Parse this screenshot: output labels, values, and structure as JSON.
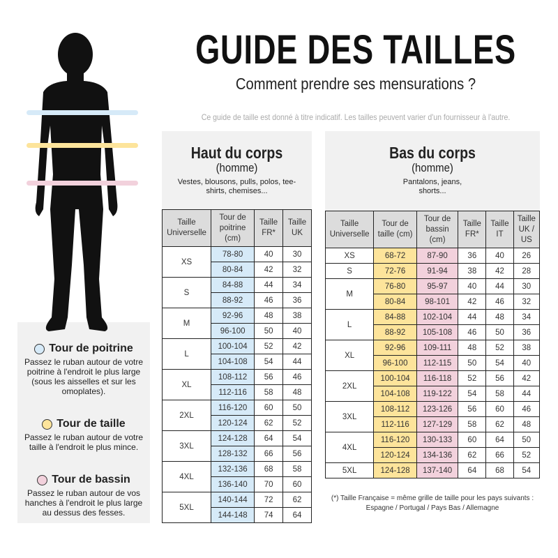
{
  "header": {
    "title": "GUIDE DES TAILLES",
    "subtitle": "Comment prendre ses mensurations ?",
    "note": "Ce guide de taille est donné à titre indicatif. Les tailles peuvent varier d'un fournisseur à l'autre."
  },
  "colors": {
    "chest": "#d6eaf8",
    "waist": "#fde49b",
    "hips": "#f2d1dc",
    "silhouette": "#111111"
  },
  "legend": [
    {
      "title": "Tour de poitrine",
      "text": "Passez le ruban autour de votre poitrine à l'endroit le plus large (sous les aisselles et sur les omoplates).",
      "color": "#d6eaf8"
    },
    {
      "title": "Tour de taille",
      "text": "Passez le ruban autour de votre taille à l'endroit le plus mince.",
      "color": "#fde49b"
    },
    {
      "title": "Tour de bassin",
      "text": "Passez le ruban autour de vos hanches à l'endroit le plus large au dessus des fesses.",
      "color": "#f2d1dc"
    }
  ],
  "top": {
    "title": "Haut du corps",
    "sub": "(homme)",
    "desc": "Vestes, blousons, pulls, polos, tee-shirts, chemises...",
    "columns": [
      "Taille Universelle",
      "Tour de poitrine (cm)",
      "Taille FR*",
      "Taille UK"
    ],
    "groups": [
      {
        "size": "XS",
        "rows": [
          [
            "78-80",
            "40",
            "30"
          ],
          [
            "80-84",
            "42",
            "32"
          ]
        ]
      },
      {
        "size": "S",
        "rows": [
          [
            "84-88",
            "44",
            "34"
          ],
          [
            "88-92",
            "46",
            "36"
          ]
        ]
      },
      {
        "size": "M",
        "rows": [
          [
            "92-96",
            "48",
            "38"
          ],
          [
            "96-100",
            "50",
            "40"
          ]
        ]
      },
      {
        "size": "L",
        "rows": [
          [
            "100-104",
            "52",
            "42"
          ],
          [
            "104-108",
            "54",
            "44"
          ]
        ]
      },
      {
        "size": "XL",
        "rows": [
          [
            "108-112",
            "56",
            "46"
          ],
          [
            "112-116",
            "58",
            "48"
          ]
        ]
      },
      {
        "size": "2XL",
        "rows": [
          [
            "116-120",
            "60",
            "50"
          ],
          [
            "120-124",
            "62",
            "52"
          ]
        ]
      },
      {
        "size": "3XL",
        "rows": [
          [
            "124-128",
            "64",
            "54"
          ],
          [
            "128-132",
            "66",
            "56"
          ]
        ]
      },
      {
        "size": "4XL",
        "rows": [
          [
            "132-136",
            "68",
            "58"
          ],
          [
            "136-140",
            "70",
            "60"
          ]
        ]
      },
      {
        "size": "5XL",
        "rows": [
          [
            "140-144",
            "72",
            "62"
          ],
          [
            "144-148",
            "74",
            "64"
          ]
        ]
      }
    ]
  },
  "bottom": {
    "title": "Bas du corps",
    "sub": "(homme)",
    "desc": "Pantalons, jeans, shorts...",
    "columns": [
      "Taille Universelle",
      "Tour de taille (cm)",
      "Tour de bassin (cm)",
      "Taille FR*",
      "Taille IT",
      "Taille UK / US"
    ],
    "groups": [
      {
        "size": "XS",
        "rows": [
          [
            "68-72",
            "87-90",
            "36",
            "40",
            "26"
          ]
        ]
      },
      {
        "size": "S",
        "rows": [
          [
            "72-76",
            "91-94",
            "38",
            "42",
            "28"
          ]
        ]
      },
      {
        "size": "M",
        "rows": [
          [
            "76-80",
            "95-97",
            "40",
            "44",
            "30"
          ],
          [
            "80-84",
            "98-101",
            "42",
            "46",
            "32"
          ]
        ]
      },
      {
        "size": "L",
        "rows": [
          [
            "84-88",
            "102-104",
            "44",
            "48",
            "34"
          ],
          [
            "88-92",
            "105-108",
            "46",
            "50",
            "36"
          ]
        ]
      },
      {
        "size": "XL",
        "rows": [
          [
            "92-96",
            "109-111",
            "48",
            "52",
            "38"
          ],
          [
            "96-100",
            "112-115",
            "50",
            "54",
            "40"
          ]
        ]
      },
      {
        "size": "2XL",
        "rows": [
          [
            "100-104",
            "116-118",
            "52",
            "56",
            "42"
          ],
          [
            "104-108",
            "119-122",
            "54",
            "58",
            "44"
          ]
        ]
      },
      {
        "size": "3XL",
        "rows": [
          [
            "108-112",
            "123-126",
            "56",
            "60",
            "46"
          ],
          [
            "112-116",
            "127-129",
            "58",
            "62",
            "48"
          ]
        ]
      },
      {
        "size": "4XL",
        "rows": [
          [
            "116-120",
            "130-133",
            "60",
            "64",
            "50"
          ],
          [
            "120-124",
            "134-136",
            "62",
            "66",
            "52"
          ]
        ]
      },
      {
        "size": "5XL",
        "rows": [
          [
            "124-128",
            "137-140",
            "64",
            "68",
            "54"
          ]
        ]
      }
    ]
  },
  "footnote": {
    "line1": "(*) Taille Française = même grille de taille pour les pays suivants :",
    "line2": "Espagne / Portugal / Pays Bas / Allemagne"
  }
}
